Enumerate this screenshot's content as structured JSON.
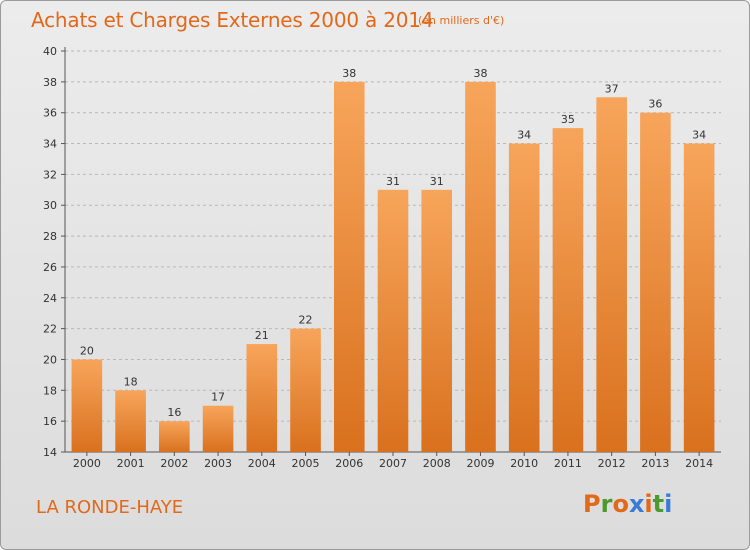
{
  "header": {
    "title": "Achats et Charges Externes 2000 à 2014",
    "subtitle": "(en milliers d'€)"
  },
  "footer": {
    "place": "LA RONDE-HAYE",
    "brand": "Proxiti",
    "brand_colors": [
      "#e2681a",
      "#4a9a2e",
      "#e2681a",
      "#3a7bd5",
      "#e2681a",
      "#4a9a2e",
      "#3a7bd5"
    ]
  },
  "colors": {
    "bar_top": "#f7a55b",
    "bar_bottom": "#d9711e",
    "accent": "#e2681a"
  },
  "chart_data": {
    "type": "bar",
    "title": "Achats et Charges Externes 2000 à 2014",
    "subtitle": "(en milliers d'€)",
    "categories": [
      "2000",
      "2001",
      "2002",
      "2003",
      "2004",
      "2005",
      "2006",
      "2007",
      "2008",
      "2009",
      "2010",
      "2011",
      "2012",
      "2013",
      "2014"
    ],
    "values": [
      20,
      18,
      16,
      17,
      21,
      22,
      38,
      31,
      31,
      38,
      34,
      35,
      37,
      36,
      34
    ],
    "data_labels": [
      "20",
      "18",
      "16",
      "17",
      "21",
      "22",
      "38",
      "31",
      "31",
      "38",
      "34",
      "35",
      "37",
      "36",
      "34"
    ],
    "ylim": [
      14,
      40
    ],
    "yticks": [
      14,
      16,
      18,
      20,
      22,
      24,
      26,
      28,
      30,
      32,
      34,
      36,
      38,
      40
    ],
    "grid": "horizontal dashed",
    "xlabel": "",
    "ylabel": ""
  }
}
